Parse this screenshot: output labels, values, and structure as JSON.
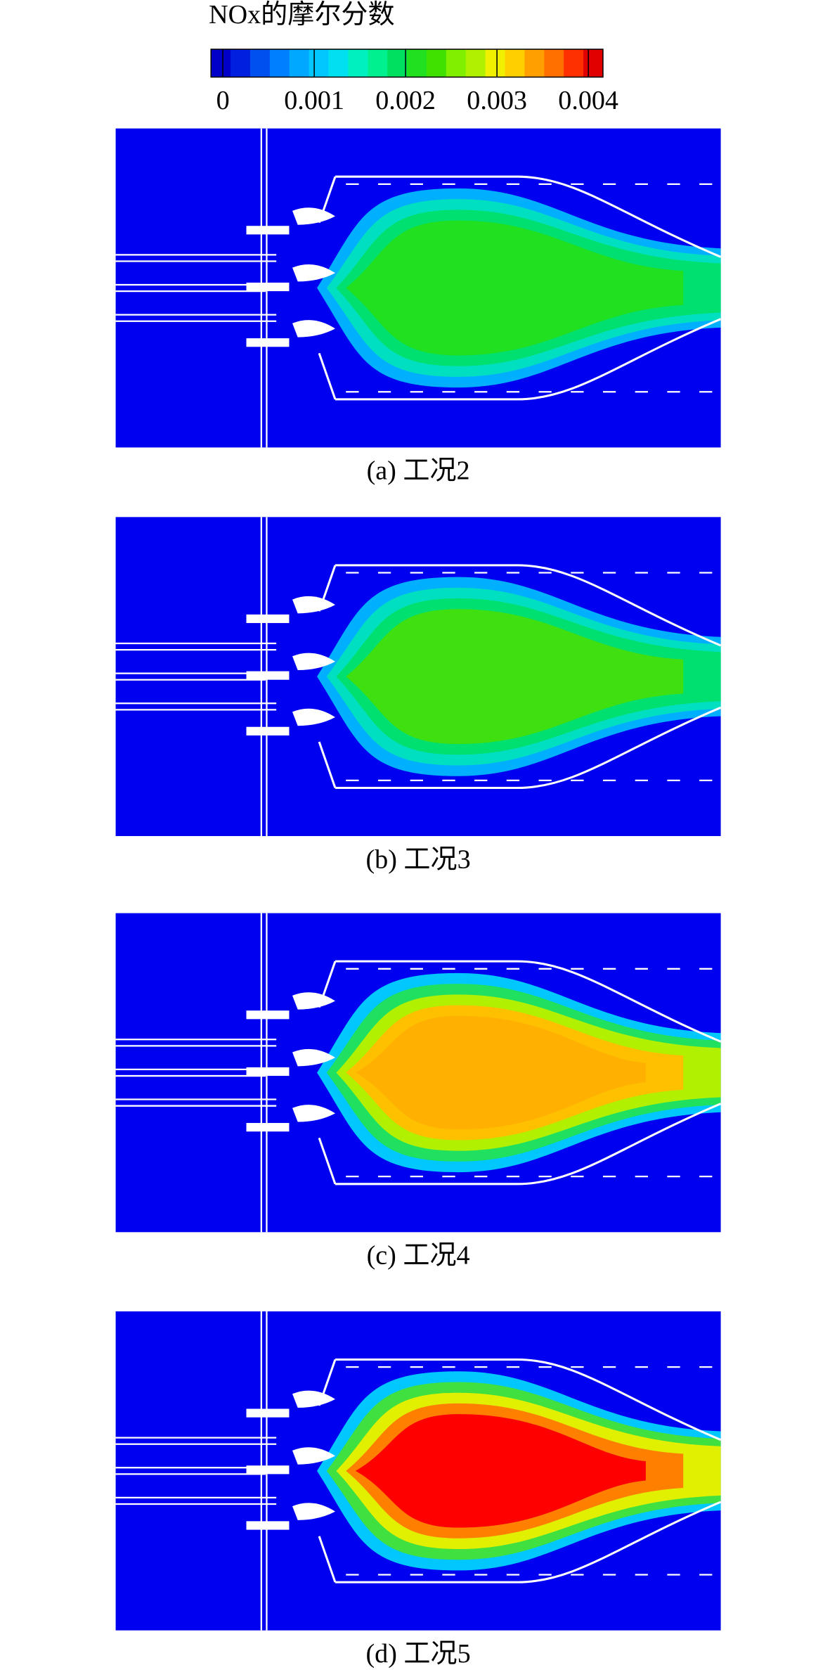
{
  "colorbar": {
    "title": "NOx的摩尔分数",
    "ticks": [
      0,
      0.001,
      0.002,
      0.003,
      0.004
    ],
    "range": [
      -0.00013,
      0.00416
    ],
    "colors": [
      "#0000c8",
      "#0020e0",
      "#0050f0",
      "#0080ff",
      "#00a8ff",
      "#00c8ff",
      "#00e0f0",
      "#00f0c0",
      "#00f090",
      "#00e060",
      "#20e020",
      "#40e000",
      "#80f000",
      "#b0f000",
      "#f0f000",
      "#ffd000",
      "#ffa000",
      "#ff7000",
      "#ff3000",
      "#e00000"
    ]
  },
  "panels": [
    {
      "caption": "(a) 工况2",
      "colors": [
        "#00b0ff",
        "#00e0c0",
        "#00e070",
        "#20e020"
      ]
    },
    {
      "caption": "(b) 工况3",
      "colors": [
        "#00b0ff",
        "#00e0c0",
        "#00e070",
        "#40e010"
      ]
    },
    {
      "caption": "(c) 工况4",
      "colors": [
        "#00c8ff",
        "#20e060",
        "#b0f000",
        "#ffc000",
        "#ffb000"
      ]
    },
    {
      "caption": "(d) 工况5",
      "colors": [
        "#00c8ff",
        "#40e040",
        "#e0f000",
        "#ff8000",
        "#ff0000"
      ]
    }
  ]
}
